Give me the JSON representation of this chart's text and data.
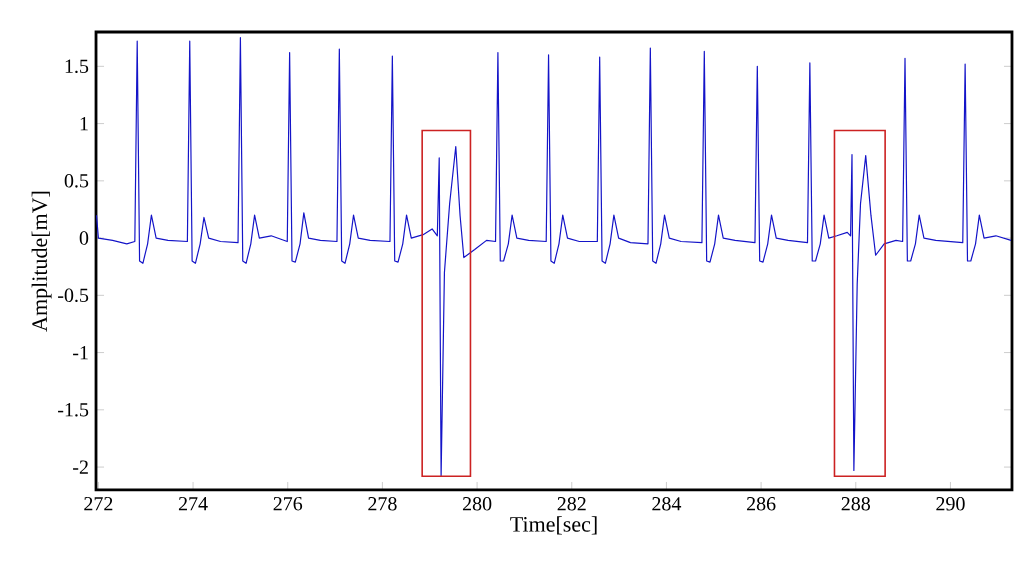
{
  "chart_data": {
    "type": "line",
    "xlabel": "Time[sec]",
    "ylabel": "Amplitude[mV]",
    "color": "#1414c8",
    "xlim": [
      271.95,
      291.3
    ],
    "ylim": [
      -2.2,
      1.8
    ],
    "xticks": [
      272,
      274,
      276,
      278,
      280,
      282,
      284,
      286,
      288,
      290
    ],
    "yticks": [
      -2,
      -1.5,
      -1,
      -0.5,
      0,
      0.5,
      1,
      1.5
    ],
    "x": [
      271.96,
      272.0,
      272.3,
      272.6,
      272.77,
      272.82,
      272.87,
      272.94,
      273.04,
      273.12,
      273.22,
      273.47,
      273.88,
      273.93,
      273.98,
      274.05,
      274.15,
      274.23,
      274.33,
      274.58,
      274.95,
      275.0,
      275.05,
      275.12,
      275.22,
      275.3,
      275.4,
      275.65,
      275.99,
      276.04,
      276.09,
      276.16,
      276.26,
      276.34,
      276.44,
      276.69,
      277.04,
      277.09,
      277.14,
      277.21,
      277.31,
      277.39,
      277.49,
      277.74,
      278.16,
      278.21,
      278.26,
      278.33,
      278.43,
      278.51,
      278.61,
      278.86,
      279.05,
      279.16,
      279.2,
      279.24,
      279.31,
      279.42,
      279.55,
      279.64,
      279.72,
      279.95,
      280.2,
      280.39,
      280.44,
      280.49,
      280.56,
      280.66,
      280.74,
      280.84,
      281.09,
      281.46,
      281.51,
      281.56,
      281.63,
      281.73,
      281.81,
      281.91,
      282.16,
      282.54,
      282.59,
      282.64,
      282.71,
      282.81,
      282.89,
      282.99,
      283.24,
      283.61,
      283.66,
      283.71,
      283.78,
      283.88,
      283.96,
      284.06,
      284.31,
      284.75,
      284.8,
      284.85,
      284.92,
      285.02,
      285.1,
      285.2,
      285.45,
      285.87,
      285.92,
      285.97,
      286.04,
      286.14,
      286.22,
      286.32,
      286.57,
      286.98,
      287.03,
      287.08,
      287.15,
      287.25,
      287.33,
      287.43,
      287.6,
      287.82,
      287.89,
      287.92,
      287.96,
      288.03,
      288.1,
      288.21,
      288.32,
      288.42,
      288.6,
      288.85,
      288.99,
      289.04,
      289.09,
      289.16,
      289.26,
      289.34,
      289.44,
      289.69,
      290.26,
      290.31,
      290.36,
      290.43,
      290.53,
      290.61,
      290.71,
      290.96,
      291.28
    ],
    "values": [
      0.2,
      0.0,
      -0.02,
      -0.05,
      -0.03,
      1.72,
      -0.2,
      -0.22,
      -0.05,
      0.2,
      0.0,
      -0.02,
      -0.03,
      1.72,
      -0.2,
      -0.22,
      -0.05,
      0.18,
      0.0,
      -0.03,
      -0.04,
      1.75,
      -0.2,
      -0.22,
      -0.05,
      0.2,
      0.0,
      0.02,
      -0.03,
      1.62,
      -0.2,
      -0.21,
      -0.05,
      0.22,
      0.0,
      -0.02,
      -0.03,
      1.65,
      -0.2,
      -0.22,
      -0.05,
      0.2,
      0.0,
      -0.02,
      -0.03,
      1.59,
      -0.2,
      -0.21,
      -0.05,
      0.2,
      0.0,
      0.03,
      0.08,
      0.02,
      0.7,
      -2.08,
      -0.3,
      0.3,
      0.8,
      0.2,
      -0.17,
      -0.1,
      -0.02,
      -0.03,
      1.62,
      -0.2,
      -0.2,
      -0.05,
      0.2,
      0.0,
      -0.02,
      -0.03,
      1.6,
      -0.2,
      -0.22,
      -0.05,
      0.2,
      0.0,
      -0.03,
      -0.03,
      1.58,
      -0.2,
      -0.22,
      -0.05,
      0.2,
      0.0,
      -0.04,
      -0.05,
      1.66,
      -0.2,
      -0.22,
      -0.05,
      0.2,
      0.0,
      -0.03,
      -0.04,
      1.63,
      -0.2,
      -0.21,
      -0.05,
      0.2,
      0.0,
      -0.02,
      -0.04,
      1.5,
      -0.2,
      -0.21,
      -0.05,
      0.2,
      0.0,
      -0.02,
      -0.04,
      1.53,
      -0.2,
      -0.2,
      -0.05,
      0.2,
      0.0,
      0.02,
      0.05,
      0.02,
      0.73,
      -2.03,
      -0.4,
      0.3,
      0.72,
      0.2,
      -0.15,
      -0.05,
      -0.02,
      -0.03,
      1.57,
      -0.2,
      -0.2,
      -0.05,
      0.2,
      0.0,
      -0.02,
      -0.04,
      1.52,
      -0.2,
      -0.2,
      -0.05,
      0.2,
      0.0,
      0.02,
      -0.02
    ]
  }
}
